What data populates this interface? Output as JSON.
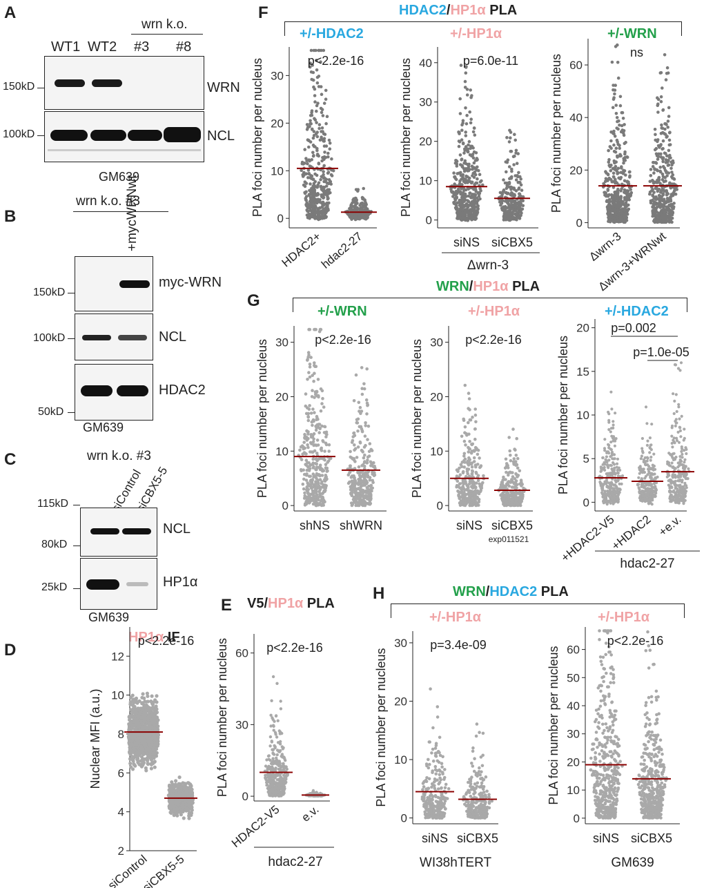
{
  "panelA": {
    "label": "A",
    "header": "wrn k.o.",
    "lanes": [
      "WT1",
      "WT2",
      "#3",
      "#8"
    ],
    "markers": [
      "150kD",
      "100kD"
    ],
    "proteins": [
      "WRN",
      "NCL"
    ],
    "cell": "GM639"
  },
  "panelB": {
    "label": "B",
    "header": "wrn k.o. #3",
    "lane": "+mycWRNwt",
    "markers": [
      "150kD",
      "100kD",
      "50kD"
    ],
    "proteins": [
      "myc-WRN",
      "NCL",
      "HDAC2"
    ],
    "cell": "GM639"
  },
  "panelC": {
    "label": "C",
    "header": "wrn k.o. #3",
    "lanes": [
      "siControl",
      "siCBX5-5"
    ],
    "markers": [
      "115kD",
      "80kD",
      "25kD"
    ],
    "proteins": [
      "NCL",
      "HP1α"
    ],
    "cell": "GM639"
  },
  "panelD": {
    "label": "D",
    "title_a": "HP1α",
    "title_b": " IF",
    "ylabel": "Nuclear MFI (a.u.)",
    "pvalue": "p<2.2e-16",
    "yticks": [
      "12",
      "10",
      "8",
      "6",
      "4",
      "2"
    ],
    "groups": [
      "siControl",
      "siCBX5-5"
    ]
  },
  "panelE": {
    "label": "E",
    "title_a": "V5/",
    "title_b": "HP1α",
    "title_c": " PLA",
    "ylabel": "PLA foci number per nucleus",
    "pvalue": "p<2.2e-16",
    "yticks": [
      "60",
      "30",
      "0"
    ],
    "groups": [
      "HDAC2-V5",
      "e.v."
    ],
    "footer": "hdac2-27"
  },
  "panelF": {
    "label": "F",
    "title_a": "HDAC2",
    "title_b": "/",
    "title_c": "HP1α",
    "title_d": " PLA",
    "sub1": {
      "title": "+/-HDAC2",
      "pvalue": "p<2.2e-16",
      "yticks": [
        "30",
        "20",
        "10",
        "0"
      ],
      "groups": [
        "HDAC2+",
        "hdac2-27"
      ]
    },
    "sub2": {
      "title": "+/-HP1α",
      "pvalue": "p=6.0e-11",
      "yticks": [
        "40",
        "30",
        "20",
        "10",
        "0"
      ],
      "groups": [
        "siNS",
        "siCBX5"
      ],
      "footer": "Δwrn-3"
    },
    "sub3": {
      "title": "+/-WRN",
      "pvalue": "ns",
      "yticks": [
        "60",
        "40",
        "20",
        "0"
      ],
      "groups": [
        "Δwrn-3",
        "Δwrn-3+WRNwt"
      ]
    },
    "ylabel": "PLA foci number per nucleus"
  },
  "panelG": {
    "label": "G",
    "title_a": "WRN",
    "title_b": "/",
    "title_c": "HP1α",
    "title_d": " PLA",
    "sub1": {
      "title": "+/-WRN",
      "pvalue": "p<2.2e-16",
      "yticks": [
        "30",
        "20",
        "10",
        "0"
      ],
      "groups": [
        "shNS",
        "shWRN"
      ]
    },
    "sub2": {
      "title": "+/-HP1α",
      "pvalue": "p<2.2e-16",
      "yticks": [
        "30",
        "20",
        "10",
        "0"
      ],
      "groups": [
        "siNS",
        "siCBX5"
      ],
      "note": "exp011521"
    },
    "sub3": {
      "title": "+/-HDAC2",
      "pvalue1": "p=0.002",
      "pvalue2": "p=1.0e-05",
      "yticks": [
        "20",
        "15",
        "10",
        "5",
        "0"
      ],
      "groups": [
        "+HDAC2-V5",
        "+HDAC2",
        "+e.v."
      ],
      "footer": "hdac2-27"
    },
    "ylabel": "PLA foci number per nucleus"
  },
  "panelH": {
    "label": "H",
    "title_a": "WRN",
    "title_b": "/",
    "title_c": "HDAC2",
    "title_d": " PLA",
    "sub1": {
      "title": "+/-HP1α",
      "pvalue": "p=3.4e-09",
      "yticks": [
        "30",
        "20",
        "10",
        "0"
      ],
      "groups": [
        "siNS",
        "siCBX5"
      ],
      "footer": "WI38hTERT"
    },
    "sub2": {
      "title": "+/-HP1α",
      "pvalue": "p<2.2e-16",
      "yticks": [
        "60",
        "50",
        "40",
        "30",
        "20",
        "10",
        "0"
      ],
      "groups": [
        "siNS",
        "siCBX5"
      ],
      "footer": "GM639"
    },
    "ylabel": "PLA foci number per nucleus"
  },
  "chart_data": [
    {
      "type": "scatter",
      "panel": "D",
      "groups": [
        "siControl",
        "siCBX5-5"
      ],
      "medians": [
        8.1,
        4.7
      ],
      "ylim": [
        2,
        13.5
      ],
      "pvalue": "p<2.2e-16"
    },
    {
      "type": "scatter",
      "panel": "E",
      "groups": [
        "HDAC2-V5",
        "e.v."
      ],
      "medians": [
        10,
        0.5
      ],
      "ylim": [
        -2,
        68
      ],
      "pvalue": "p<2.2e-16"
    },
    {
      "type": "scatter",
      "panel": "F1",
      "groups": [
        "HDAC2+",
        "hdac2-27"
      ],
      "medians": [
        10.5,
        1.3
      ],
      "ylim": [
        -2,
        36
      ],
      "pvalue": "p<2.2e-16"
    },
    {
      "type": "scatter",
      "panel": "F2",
      "groups": [
        "siNS",
        "siCBX5"
      ],
      "medians": [
        8.5,
        5.5
      ],
      "ylim": [
        -2,
        44
      ],
      "pvalue": "p=6.0e-11"
    },
    {
      "type": "scatter",
      "panel": "F3",
      "groups": [
        "Δwrn-3",
        "Δwrn-3+WRNwt"
      ],
      "medians": [
        14,
        14
      ],
      "ylim": [
        -2,
        70
      ],
      "pvalue": "ns"
    },
    {
      "type": "scatter",
      "panel": "G1",
      "groups": [
        "shNS",
        "shWRN"
      ],
      "medians": [
        9,
        6.5
      ],
      "ylim": [
        -1,
        33
      ],
      "pvalue": "p<2.2e-16"
    },
    {
      "type": "scatter",
      "panel": "G2",
      "groups": [
        "siNS",
        "siCBX5"
      ],
      "medians": [
        5,
        2.8
      ],
      "ylim": [
        -1,
        33
      ],
      "pvalue": "p<2.2e-16"
    },
    {
      "type": "scatter",
      "panel": "G3",
      "groups": [
        "+HDAC2-V5",
        "+HDAC2",
        "+e.v."
      ],
      "medians": [
        2.8,
        2.4,
        3.5
      ],
      "ylim": [
        -1,
        21
      ],
      "pvalues": [
        "p=0.002",
        "p=1.0e-05"
      ]
    },
    {
      "type": "scatter",
      "panel": "H1",
      "groups": [
        "siNS",
        "siCBX5"
      ],
      "medians": [
        4.5,
        3.2
      ],
      "ylim": [
        -1,
        32
      ],
      "pvalue": "p=3.4e-09"
    },
    {
      "type": "scatter",
      "panel": "H2",
      "groups": [
        "siNS",
        "siCBX5"
      ],
      "medians": [
        19,
        14
      ],
      "ylim": [
        -2,
        68
      ],
      "pvalue": "p<2.2e-16"
    }
  ],
  "colors": {
    "dots": "#9a9a9a",
    "median": "#8b0000",
    "blue": "#29a8e0",
    "pink": "#f0a3a5",
    "green": "#23a04b"
  }
}
